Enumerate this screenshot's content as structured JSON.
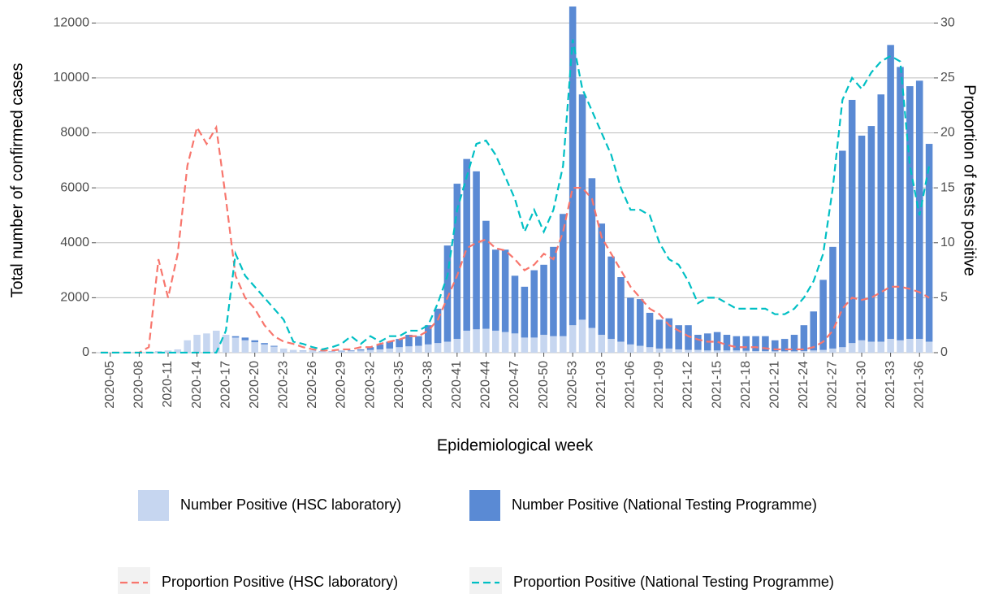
{
  "chart_data": {
    "type": "bar",
    "x_label": "Epidemiological week",
    "y_label": "Total number of confirmed cases",
    "y2_label": "Proportion of tests positive",
    "categories": [
      null,
      "2020-05",
      null,
      null,
      "2020-08",
      null,
      null,
      "2020-11",
      null,
      null,
      "2020-14",
      null,
      null,
      "2020-17",
      null,
      null,
      "2020-20",
      null,
      null,
      "2020-23",
      null,
      null,
      "2020-26",
      null,
      null,
      "2020-29",
      null,
      null,
      "2020-32",
      null,
      null,
      "2020-35",
      null,
      null,
      "2020-38",
      null,
      null,
      "2020-41",
      null,
      null,
      "2020-44",
      null,
      null,
      "2020-47",
      null,
      null,
      "2020-50",
      null,
      null,
      "2020-53",
      null,
      null,
      "2021-03",
      null,
      null,
      "2021-06",
      null,
      null,
      "2021-09",
      null,
      null,
      "2021-12",
      null,
      null,
      "2021-15",
      null,
      null,
      "2021-18",
      null,
      null,
      "2021-21",
      null,
      null,
      "2021-24",
      null,
      null,
      "2021-27",
      null,
      null,
      "2021-30",
      null,
      null,
      "2021-33",
      null,
      null,
      "2021-36",
      null
    ],
    "ylim": [
      0,
      12600
    ],
    "yticks": [
      0,
      2000,
      4000,
      6000,
      8000,
      10000,
      12000
    ],
    "y2lim": [
      0,
      31.5
    ],
    "y2ticks": [
      0,
      5,
      10,
      15,
      20,
      25,
      30
    ],
    "grid": true,
    "stacked": true,
    "series": [
      {
        "name": "Number Positive (HSC laboratory)",
        "kind": "bar",
        "color": "#c6d6f0",
        "values": [
          10,
          10,
          10,
          20,
          30,
          40,
          60,
          80,
          120,
          450,
          650,
          700,
          800,
          650,
          550,
          450,
          380,
          300,
          220,
          150,
          100,
          70,
          60,
          50,
          50,
          50,
          60,
          80,
          100,
          120,
          150,
          200,
          230,
          250,
          300,
          350,
          400,
          500,
          800,
          850,
          870,
          800,
          750,
          700,
          550,
          550,
          650,
          600,
          600,
          1000,
          1200,
          900,
          650,
          500,
          400,
          300,
          250,
          200,
          150,
          150,
          120,
          100,
          100,
          80,
          80,
          80,
          80,
          70,
          60,
          60,
          50,
          50,
          50,
          60,
          80,
          100,
          150,
          200,
          350,
          450,
          400,
          400,
          500,
          450,
          500,
          500,
          400
        ]
      },
      {
        "name": "Number Positive (National Testing Programme)",
        "kind": "bar",
        "color": "#5a8ad4",
        "values": [
          0,
          0,
          0,
          0,
          0,
          0,
          0,
          0,
          0,
          0,
          0,
          0,
          0,
          0,
          50,
          100,
          70,
          50,
          30,
          0,
          0,
          10,
          10,
          10,
          10,
          20,
          20,
          40,
          100,
          180,
          250,
          300,
          420,
          350,
          700,
          1250,
          3500,
          5650,
          6250,
          5750,
          3930,
          2950,
          3000,
          2100,
          1850,
          2450,
          2550,
          3250,
          4450,
          11700,
          8200,
          5450,
          4050,
          3000,
          2350,
          1700,
          1700,
          1250,
          1050,
          1100,
          880,
          900,
          550,
          620,
          670,
          570,
          520,
          530,
          540,
          540,
          400,
          450,
          600,
          940,
          1420,
          2550,
          3700,
          7150,
          8850,
          7450,
          7850,
          9000,
          10700,
          9950,
          9200,
          9400,
          7200
        ]
      },
      {
        "name": "Proportion Positive (HSC laboratory)",
        "kind": "line",
        "axis": "y2",
        "line_style": "dashed",
        "color": "#f8766d",
        "values": [
          0,
          0,
          0,
          0,
          0,
          0.5,
          8.5,
          5,
          9,
          17,
          20.5,
          19,
          20.5,
          14,
          7,
          5,
          4,
          2.5,
          1.5,
          1,
          0.8,
          0.5,
          0.3,
          0.2,
          0.2,
          0.3,
          0.3,
          0.5,
          0.5,
          0.8,
          1,
          1.2,
          1.5,
          1.5,
          2,
          3,
          5,
          7,
          9.5,
          10,
          10.3,
          9.5,
          9.3,
          8.5,
          7.5,
          8,
          9,
          8.5,
          11,
          15,
          15,
          14,
          10.5,
          9,
          7.5,
          6,
          5,
          4,
          3.5,
          2.5,
          2,
          1.5,
          1.2,
          1,
          1,
          0.7,
          0.5,
          0.5,
          0.5,
          0.4,
          0.3,
          0.3,
          0.3,
          0.3,
          0.5,
          1,
          2,
          4,
          5,
          4.8,
          5,
          5.5,
          6,
          6,
          5.8,
          5.5,
          5
        ]
      },
      {
        "name": "Proportion Positive (National Testing Programme)",
        "kind": "line",
        "axis": "y2",
        "line_style": "dashed",
        "color": "#00bfc4",
        "values": [
          0,
          0,
          0,
          0,
          0,
          0,
          0,
          0,
          0,
          0,
          0,
          0,
          0,
          2,
          9,
          7,
          6,
          5,
          4,
          3,
          1,
          0.8,
          0.5,
          0.3,
          0.5,
          0.8,
          1.5,
          0.8,
          1.5,
          1,
          1.5,
          1.5,
          2,
          2,
          2.5,
          4.5,
          7,
          13,
          16,
          19,
          19.3,
          18,
          16,
          14,
          11,
          13,
          11,
          13,
          17,
          28.5,
          24,
          22,
          20,
          18,
          15,
          13,
          13,
          12.5,
          10,
          8.5,
          8,
          6.5,
          4.5,
          5,
          5,
          4.5,
          4,
          4,
          4,
          4,
          3.5,
          3.5,
          4,
          5,
          6.5,
          9,
          15,
          23,
          25,
          24,
          25.5,
          26.5,
          27,
          26.5,
          17,
          12.5,
          17
        ]
      }
    ]
  }
}
